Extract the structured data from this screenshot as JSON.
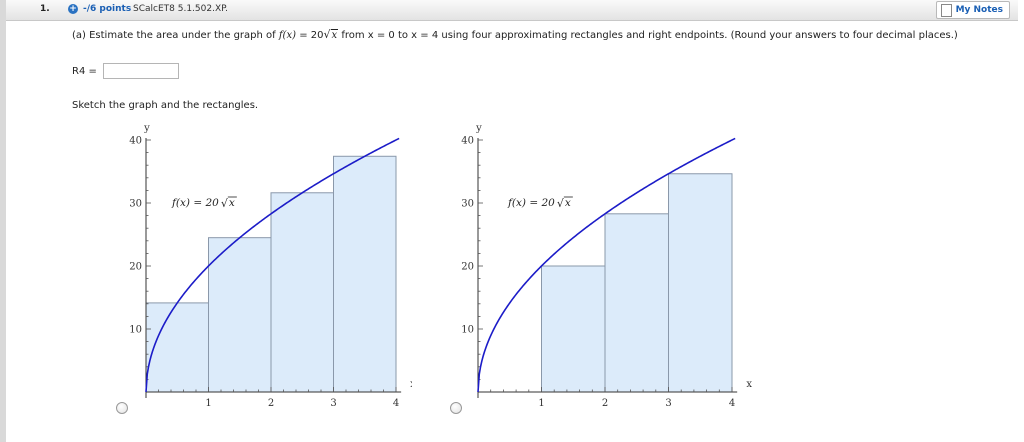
{
  "header": {
    "question_number": "1.",
    "points_label": "-/6 points",
    "source_label": "SCalcET8 5.1.502.XP.",
    "my_notes_label": "My Notes"
  },
  "question": {
    "intro": "(a) Estimate the area under the graph of ",
    "fn_name": "f(x)",
    "equals_coef": " = 20",
    "sqrt_var": "x",
    "range_text": " from x = 0 to x = 4  using four approximating rectangles and right endpoints. (Round your answers to four decimal places.)",
    "answer_label": "R4 =",
    "answer_value": "",
    "sketch_label": "Sketch the graph and the rectangles."
  },
  "options": [
    "option-a",
    "option-b"
  ],
  "charts": {
    "y_axis_label": "y",
    "x_axis_label": "x",
    "function_label": "f(x) = 20",
    "function_sqrt": "x"
  },
  "chart_data": [
    {
      "type": "bar",
      "ylabel": "y",
      "xlabel": "x",
      "xlim": [
        0,
        4.05
      ],
      "ylim": [
        0,
        40
      ],
      "x_ticks": [
        "1",
        "2",
        "3",
        "4"
      ],
      "y_ticks": [
        "10",
        "20",
        "30",
        "40"
      ],
      "curve": "f(x) = 20 sqrt(x)",
      "rectangles": [
        {
          "x0": 0,
          "x1": 1,
          "height": 14.1421
        },
        {
          "x0": 1,
          "x1": 2,
          "height": 24.4949
        },
        {
          "x0": 2,
          "x1": 3,
          "height": 31.6228
        },
        {
          "x0": 3,
          "x1": 4,
          "height": 37.4166
        }
      ]
    },
    {
      "type": "bar",
      "ylabel": "y",
      "xlabel": "x",
      "xlim": [
        0,
        4.05
      ],
      "ylim": [
        0,
        40
      ],
      "x_ticks": [
        "1",
        "2",
        "3",
        "4"
      ],
      "y_ticks": [
        "10",
        "20",
        "30",
        "40"
      ],
      "curve": "f(x) = 20 sqrt(x)",
      "rectangles": [
        {
          "x0": 1,
          "x1": 2,
          "height": 20
        },
        {
          "x0": 2,
          "x1": 3,
          "height": 28.2843
        },
        {
          "x0": 3,
          "x1": 4,
          "height": 34.641
        }
      ]
    }
  ],
  "colors": {
    "curve": "#1c1cc8",
    "rect_fill": "#dcebfa",
    "rect_stroke": "#8a98aa",
    "accent": "#1a5fb4"
  }
}
